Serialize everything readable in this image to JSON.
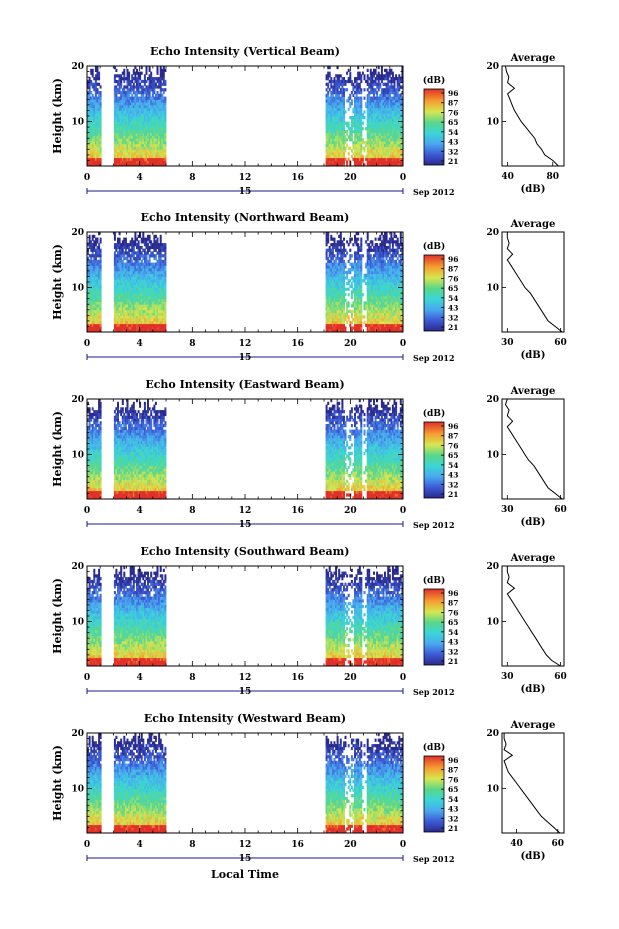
{
  "chart_data": [
    {
      "type": "heatmap",
      "title": "Echo Intensity (Vertical Beam)",
      "ylabel": "Height (km)",
      "x_ticks": [
        "0",
        "4",
        "8",
        "12",
        "16",
        "20",
        "0"
      ],
      "y_ticks": [
        "20",
        "10"
      ],
      "date_marker": "15",
      "date_label": "Sep 2012",
      "xlim": [
        0,
        24
      ],
      "ylim": [
        2,
        20
      ],
      "data_gaps_hours": [
        [
          1.0,
          2.0
        ],
        [
          6.0,
          18.0
        ]
      ],
      "colorbar": {
        "label": "(dB)",
        "ticks": [
          "96",
          "87",
          "76",
          "65",
          "54",
          "43",
          "32",
          "21"
        ],
        "range": [
          21,
          96
        ]
      },
      "average_profile": {
        "title": "Average",
        "xlabel": "(dB)",
        "x_ticks": [
          "40",
          "80"
        ],
        "xlim": [
          35,
          90
        ],
        "y_ticks": [
          "20",
          "10"
        ],
        "height_km": [
          2,
          3,
          4,
          5,
          6,
          7,
          8,
          9,
          10,
          11,
          12,
          13,
          14,
          15,
          16,
          17,
          18,
          19,
          20
        ],
        "db": [
          85,
          80,
          73,
          70,
          66,
          64,
          60,
          56,
          52,
          49,
          46,
          44,
          42,
          40,
          46,
          40,
          41,
          39,
          38
        ]
      }
    },
    {
      "type": "heatmap",
      "title": "Echo Intensity (Northward Beam)",
      "ylabel": "Height (km)",
      "x_ticks": [
        "0",
        "4",
        "8",
        "12",
        "16",
        "20",
        "0"
      ],
      "y_ticks": [
        "20",
        "10"
      ],
      "date_marker": "15",
      "date_label": "Sep 2012",
      "xlim": [
        0,
        24
      ],
      "ylim": [
        2,
        20
      ],
      "data_gaps_hours": [
        [
          1.0,
          2.0
        ],
        [
          6.0,
          18.0
        ]
      ],
      "colorbar": {
        "label": "(dB)",
        "ticks": [
          "96",
          "87",
          "76",
          "65",
          "54",
          "43",
          "32",
          "21"
        ],
        "range": [
          21,
          96
        ]
      },
      "average_profile": {
        "title": "Average",
        "xlabel": "(dB)",
        "x_ticks": [
          "30",
          "60"
        ],
        "xlim": [
          27,
          62
        ],
        "y_ticks": [
          "20",
          "10"
        ],
        "height_km": [
          2,
          3,
          4,
          5,
          6,
          7,
          8,
          9,
          10,
          11,
          12,
          13,
          14,
          15,
          16,
          17,
          18,
          19,
          20
        ],
        "db": [
          61,
          57,
          53,
          51,
          49,
          47,
          45,
          43,
          40,
          38,
          36,
          34,
          32,
          30,
          33,
          30,
          31,
          30,
          30
        ]
      }
    },
    {
      "type": "heatmap",
      "title": "Echo Intensity (Eastward Beam)",
      "ylabel": "Height (km)",
      "x_ticks": [
        "0",
        "4",
        "8",
        "12",
        "16",
        "20",
        "0"
      ],
      "y_ticks": [
        "20",
        "10"
      ],
      "date_marker": "15",
      "date_label": "Sep 2012",
      "xlim": [
        0,
        24
      ],
      "ylim": [
        2,
        20
      ],
      "data_gaps_hours": [
        [
          1.0,
          2.0
        ],
        [
          6.0,
          18.0
        ]
      ],
      "colorbar": {
        "label": "(dB)",
        "ticks": [
          "96",
          "87",
          "76",
          "65",
          "54",
          "43",
          "32",
          "21"
        ],
        "range": [
          21,
          96
        ]
      },
      "average_profile": {
        "title": "Average",
        "xlabel": "(dB)",
        "x_ticks": [
          "30",
          "60"
        ],
        "xlim": [
          27,
          62
        ],
        "y_ticks": [
          "20",
          "10"
        ],
        "height_km": [
          2,
          3,
          4,
          5,
          6,
          7,
          8,
          9,
          10,
          11,
          12,
          13,
          14,
          15,
          16,
          17,
          18,
          19,
          20
        ],
        "db": [
          61,
          57,
          53,
          51,
          49,
          47,
          45,
          42,
          40,
          38,
          36,
          34,
          32,
          30,
          33,
          30,
          31,
          29,
          30
        ]
      }
    },
    {
      "type": "heatmap",
      "title": "Echo Intensity (Southward Beam)",
      "ylabel": "Height (km)",
      "x_ticks": [
        "0",
        "4",
        "8",
        "12",
        "16",
        "20",
        "0"
      ],
      "y_ticks": [
        "20",
        "10"
      ],
      "date_marker": "15",
      "date_label": "Sep 2012",
      "xlim": [
        0,
        24
      ],
      "ylim": [
        2,
        20
      ],
      "data_gaps_hours": [
        [
          1.0,
          2.0
        ],
        [
          6.0,
          18.0
        ]
      ],
      "colorbar": {
        "label": "(dB)",
        "ticks": [
          "96",
          "87",
          "76",
          "65",
          "54",
          "43",
          "32",
          "21"
        ],
        "range": [
          21,
          96
        ]
      },
      "average_profile": {
        "title": "Average",
        "xlabel": "(dB)",
        "x_ticks": [
          "30",
          "60"
        ],
        "xlim": [
          27,
          62
        ],
        "y_ticks": [
          "20",
          "10"
        ],
        "height_km": [
          2,
          3,
          4,
          5,
          6,
          7,
          8,
          9,
          10,
          11,
          12,
          13,
          14,
          15,
          16,
          17,
          18,
          19,
          20
        ],
        "db": [
          60,
          55,
          52,
          50,
          48,
          46,
          44,
          42,
          40,
          38,
          36,
          34,
          32,
          30,
          34,
          30,
          31,
          30,
          30
        ]
      }
    },
    {
      "type": "heatmap",
      "title": "Echo Intensity (Westward Beam)",
      "ylabel": "Height (km)",
      "x_ticks": [
        "0",
        "4",
        "8",
        "12",
        "16",
        "20",
        "0"
      ],
      "y_ticks": [
        "20",
        "10"
      ],
      "date_marker": "15",
      "date_label": "Sep 2012",
      "xlim": [
        0,
        24
      ],
      "ylim": [
        2,
        20
      ],
      "data_gaps_hours": [
        [
          1.0,
          2.0
        ],
        [
          6.0,
          18.0
        ]
      ],
      "colorbar": {
        "label": "(dB)",
        "ticks": [
          "96",
          "87",
          "76",
          "65",
          "54",
          "43",
          "32",
          "21"
        ],
        "range": [
          21,
          96
        ]
      },
      "average_profile": {
        "title": "Average",
        "xlabel": "(dB)",
        "x_ticks": [
          "40",
          "60"
        ],
        "xlim": [
          33,
          63
        ],
        "y_ticks": [
          "20",
          "10"
        ],
        "height_km": [
          2,
          3,
          4,
          5,
          6,
          7,
          8,
          9,
          10,
          11,
          12,
          13,
          14,
          15,
          16,
          17,
          18,
          19,
          20
        ],
        "db": [
          61,
          58,
          55,
          52,
          50,
          48,
          46,
          44,
          42,
          40,
          38,
          36,
          35,
          34,
          38,
          34,
          35,
          34,
          34
        ]
      }
    }
  ],
  "xlabel": "Local Time"
}
